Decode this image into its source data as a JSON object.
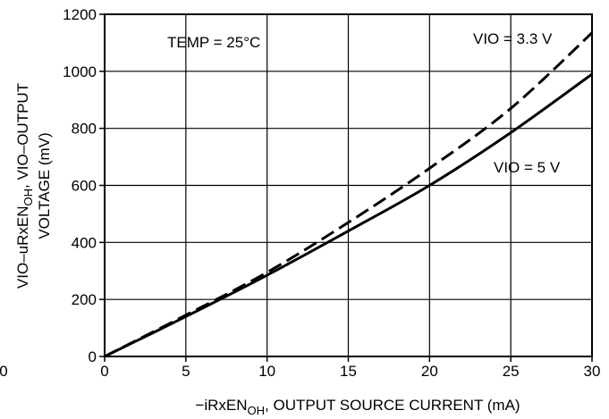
{
  "chart_data": {
    "type": "line",
    "xlabel": "−iRxEN",
    "xlabel_sub": "OH",
    "xlabel_rest": ", OUTPUT SOURCE CURRENT (mA)",
    "ylabel_line1_pre": "VIO–uRxEN",
    "ylabel_line1_sub": "OH",
    "ylabel_line1_post": ", VIO–OUTPUT",
    "ylabel_line2": "VOLTAGE (mV)",
    "xlim": [
      0,
      30
    ],
    "ylim": [
      0,
      1200
    ],
    "x_ticks": [
      "0",
      "5",
      "10",
      "15",
      "20",
      "25",
      "30"
    ],
    "y_ticks": [
      "0",
      "200",
      "400",
      "600",
      "800",
      "1000",
      "1200"
    ],
    "stray_tick_label": "0",
    "grid": true,
    "annotations": {
      "temp": "TEMP = 25°C",
      "vio33": "VIO = 3.3 V",
      "vio5": "VIO = 5 V"
    },
    "series": [
      {
        "name": "VIO = 3.3 V",
        "style": "dashed",
        "x": [
          0,
          5,
          10,
          15,
          20,
          25,
          30
        ],
        "y": [
          0,
          145,
          295,
          470,
          660,
          870,
          1135
        ]
      },
      {
        "name": "VIO = 5 V",
        "style": "solid",
        "x": [
          0,
          5,
          10,
          15,
          20,
          25,
          30
        ],
        "y": [
          0,
          140,
          285,
          440,
          600,
          785,
          990
        ]
      }
    ]
  }
}
